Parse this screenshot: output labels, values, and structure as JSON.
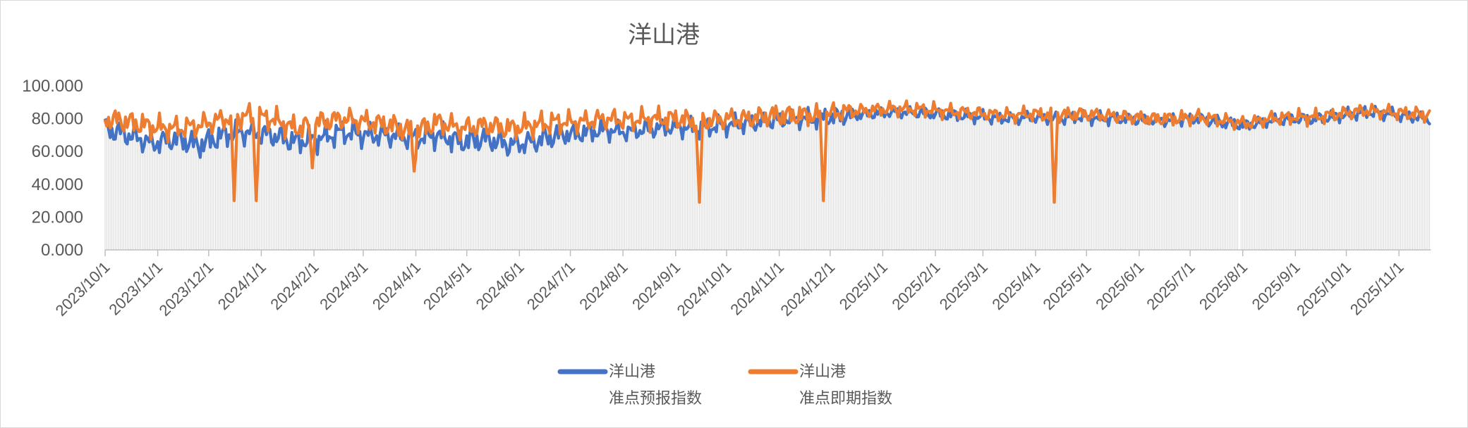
{
  "chart_data": {
    "type": "line",
    "title": "洋山港",
    "x_axis": {
      "start_date": "2023/10/1",
      "total_days": 781,
      "tick_labels": [
        "2023/10/1",
        "2023/11/1",
        "2023/12/1",
        "2024/1/1",
        "2024/2/1",
        "2024/3/1",
        "2024/4/1",
        "2024/5/1",
        "2024/6/1",
        "2024/7/1",
        "2024/8/1",
        "2024/9/1",
        "2024/10/1",
        "2024/11/1",
        "2024/12/1",
        "2025/1/1",
        "2025/2/1",
        "2025/3/1",
        "2025/4/1",
        "2025/5/1",
        "2025/6/1",
        "2025/7/1",
        "2025/8/1",
        "2025/9/1",
        "2025/10/1",
        "2025/11/1"
      ],
      "tick_days": [
        0,
        31,
        61,
        92,
        123,
        152,
        183,
        213,
        244,
        274,
        305,
        336,
        366,
        397,
        427,
        458,
        489,
        517,
        548,
        578,
        609,
        639,
        670,
        701,
        731,
        762
      ]
    },
    "y_axis": {
      "ylim": [
        0,
        100
      ],
      "ticks": [
        0,
        20,
        40,
        60,
        80,
        100
      ],
      "tick_labels": [
        "0.000",
        "20.000",
        "40.000",
        "60.000",
        "80.000",
        "100.000"
      ]
    },
    "grid": "vertical-droplines-only",
    "legend_position": "bottom-center",
    "anchor_step": 14,
    "series": [
      {
        "name": "洋山港 准点预报指数",
        "legend_lines": [
          "洋山港",
          "准点预报指数"
        ],
        "color": "#4472C4",
        "noise_phase": 0.0,
        "anchors": [
          74,
          70,
          65,
          68,
          64,
          70,
          72,
          70,
          66,
          68,
          72,
          70,
          70,
          68,
          70,
          66,
          68,
          64,
          66,
          70,
          71,
          73,
          72,
          74,
          75,
          74,
          76,
          77,
          79,
          80,
          80,
          82,
          83,
          84,
          84,
          83,
          82,
          81,
          80,
          81,
          80,
          81,
          80,
          80,
          79,
          79,
          80,
          78,
          76,
          79,
          80,
          80,
          82,
          84,
          83,
          81,
          80
        ],
        "dip_events": []
      },
      {
        "name": "洋山港 准点即期指数",
        "legend_lines": [
          "洋山港",
          "准点即期指数"
        ],
        "color": "#ED7D31",
        "noise_phase": 4.0,
        "anchors": [
          80,
          78,
          75,
          74,
          76,
          80,
          82,
          80,
          74,
          78,
          80,
          78,
          76,
          72,
          78,
          74,
          76,
          74,
          76,
          78,
          78,
          80,
          79,
          80,
          80,
          78,
          80,
          80,
          82,
          82,
          82,
          84,
          85,
          86,
          86,
          85,
          84,
          83,
          82,
          83,
          82,
          83,
          82,
          81,
          80,
          80,
          81,
          79,
          77,
          80,
          81,
          81,
          83,
          85,
          84,
          83,
          82
        ],
        "dip_events": [
          {
            "day": 76,
            "value": 30
          },
          {
            "day": 89,
            "value": 30
          },
          {
            "day": 122,
            "value": 50
          },
          {
            "day": 182,
            "value": 48
          },
          {
            "day": 350,
            "value": 29
          },
          {
            "day": 423,
            "value": 30
          },
          {
            "day": 559,
            "value": 29
          }
        ]
      }
    ],
    "noise_eras": [
      {
        "until": 270,
        "amp": [
          7.0,
          6.5
        ]
      },
      {
        "until": 440,
        "amp": [
          5.5,
          6.0
        ]
      },
      {
        "until": 781,
        "amp": [
          3.5,
          4.0
        ]
      }
    ],
    "missing_days": [
      668
    ],
    "value_range_observed": [
      29,
      90
    ],
    "colors": {
      "dropline": "#DADADA",
      "axis": "#BFBFBF",
      "text": "#595959",
      "background": "#FFFFFF"
    }
  }
}
